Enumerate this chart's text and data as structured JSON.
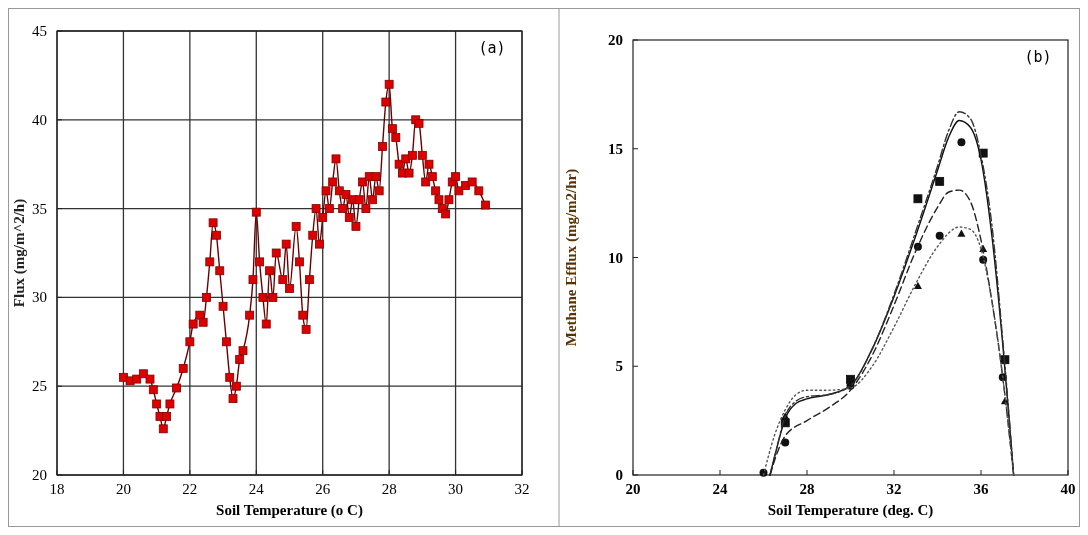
{
  "chart_data": [
    {
      "type": "line",
      "xlabel": "Soil Temperature (o C)",
      "ylabel": "Flux (mg/m^2/h)",
      "annotations": [
        "(a)"
      ],
      "xlim": [
        18,
        32
      ],
      "xticks": [
        18,
        20,
        22,
        24,
        26,
        28,
        30,
        32
      ],
      "ylim": [
        20,
        45
      ],
      "yticks": [
        20,
        25,
        30,
        35,
        40,
        45
      ],
      "grid": true,
      "marker": "square",
      "series": [
        {
          "color": "#dd0000",
          "x": [
            20.0,
            20.2,
            20.4,
            20.6,
            20.8,
            20.9,
            21.0,
            21.1,
            21.2,
            21.3,
            21.4,
            21.6,
            21.8,
            22.0,
            22.1,
            22.3,
            22.4,
            22.5,
            22.6,
            22.7,
            22.8,
            22.9,
            23.0,
            23.1,
            23.2,
            23.3,
            23.4,
            23.5,
            23.6,
            23.8,
            23.9,
            24.0,
            24.1,
            24.2,
            24.3,
            24.4,
            24.5,
            24.6,
            24.8,
            24.9,
            25.0,
            25.2,
            25.3,
            25.4,
            25.5,
            25.6,
            25.7,
            25.8,
            25.9,
            26.0,
            26.1,
            26.2,
            26.3,
            26.4,
            26.5,
            26.6,
            26.7,
            26.8,
            26.9,
            27.0,
            27.1,
            27.2,
            27.3,
            27.4,
            27.5,
            27.6,
            27.7,
            27.8,
            27.9,
            28.0,
            28.1,
            28.2,
            28.3,
            28.4,
            28.5,
            28.6,
            28.7,
            28.8,
            28.9,
            29.0,
            29.1,
            29.2,
            29.3,
            29.4,
            29.5,
            29.6,
            29.7,
            29.8,
            29.9,
            30.0,
            30.1,
            30.3,
            30.5,
            30.7,
            30.9
          ],
          "values": [
            25.5,
            25.3,
            25.4,
            25.7,
            25.4,
            24.8,
            24.0,
            23.3,
            22.6,
            23.3,
            24.0,
            24.9,
            26.0,
            27.5,
            28.5,
            29.0,
            28.6,
            30.0,
            32.0,
            34.2,
            33.5,
            31.5,
            29.5,
            27.5,
            25.5,
            24.3,
            25.0,
            26.5,
            27.0,
            29.0,
            31.0,
            34.8,
            32.0,
            30.0,
            28.5,
            31.5,
            30.0,
            32.5,
            31.0,
            33.0,
            30.5,
            34.0,
            32.0,
            29.0,
            28.2,
            31.0,
            33.5,
            35.0,
            33.0,
            34.5,
            36.0,
            35.0,
            36.5,
            37.8,
            36.0,
            35.0,
            35.8,
            34.5,
            35.5,
            34.0,
            35.5,
            36.5,
            35.0,
            36.8,
            35.5,
            36.8,
            36.0,
            38.5,
            41.0,
            42.0,
            39.5,
            39.0,
            37.5,
            37.0,
            37.8,
            37.0,
            38.0,
            40.0,
            39.8,
            38.0,
            36.5,
            37.5,
            36.8,
            36.0,
            35.5,
            35.0,
            34.7,
            35.5,
            36.5,
            36.8,
            36.0,
            36.3,
            36.5,
            36.0,
            35.2
          ]
        }
      ]
    },
    {
      "type": "scatter",
      "xlabel": "Soil Temperature (deg. C)",
      "ylabel": "Methane Efflux (mg/m2/hr)",
      "annotations": [
        "(b)"
      ],
      "xlim": [
        20,
        40
      ],
      "xticks": [
        20,
        24,
        28,
        32,
        36,
        40
      ],
      "ylim": [
        0,
        20
      ],
      "yticks": [
        0,
        5,
        10,
        15,
        20
      ],
      "grid": false,
      "series": [
        {
          "color": "#111111",
          "marker": "square",
          "x": [
            27,
            30,
            33.1,
            34.1,
            36.1,
            37.1
          ],
          "values": [
            2.4,
            4.4,
            12.7,
            13.5,
            14.8,
            5.3
          ]
        },
        {
          "color": "#111111",
          "marker": "circle",
          "x": [
            26,
            27,
            30,
            33.1,
            34.1,
            35.1,
            36.1,
            37
          ],
          "values": [
            0.1,
            1.5,
            4.1,
            10.5,
            11.0,
            15.3,
            9.9,
            4.5
          ]
        },
        {
          "color": "#111111",
          "marker": "triangle",
          "x": [
            27,
            33.1,
            35.1,
            36.1,
            37.1
          ],
          "values": [
            2.7,
            8.7,
            11.1,
            10.4,
            3.4
          ]
        },
        {
          "color": "#111111",
          "type": "line",
          "line_style": "solid",
          "x": [
            26.3,
            26.6,
            27,
            27.5,
            28,
            29,
            30,
            31,
            32,
            33,
            34,
            34.5,
            35,
            35.5,
            36,
            36.5,
            37,
            37.3,
            37.5
          ],
          "values": [
            0,
            1.2,
            2.6,
            3.3,
            3.5,
            3.7,
            4.1,
            5.8,
            8.2,
            11.0,
            14.0,
            15.5,
            16.3,
            16.0,
            14.5,
            11.0,
            6.0,
            2.5,
            0
          ]
        },
        {
          "color": "#333333",
          "type": "line",
          "line_style": "dashdot",
          "x": [
            26.3,
            26.6,
            27,
            27.5,
            28,
            29,
            30,
            31,
            32,
            33,
            34,
            34.5,
            35,
            35.5,
            36,
            36.5,
            37,
            37.3,
            37.5
          ],
          "values": [
            0,
            1.2,
            2.7,
            3.4,
            3.6,
            3.7,
            4.1,
            5.8,
            8.3,
            11.2,
            14.2,
            15.8,
            16.7,
            16.4,
            14.7,
            11.5,
            6.2,
            2.6,
            0
          ]
        },
        {
          "color": "#222222",
          "type": "line",
          "line_style": "dashed",
          "x": [
            26.3,
            26.7,
            27,
            28,
            29,
            30,
            31,
            32,
            33,
            34,
            34.5,
            35,
            35.5,
            36,
            36.5,
            37,
            37.5
          ],
          "values": [
            0,
            1.2,
            1.8,
            2.5,
            3.1,
            3.9,
            5.5,
            7.8,
            10.3,
            12.3,
            13.0,
            13.1,
            12.6,
            10.8,
            8.0,
            4.5,
            0
          ]
        },
        {
          "color": "#555555",
          "type": "line",
          "line_style": "dotted",
          "x": [
            26.0,
            26.5,
            27,
            27.5,
            28,
            29,
            30,
            31,
            32,
            33,
            34,
            35,
            35.5,
            36,
            36.5,
            37,
            37.5
          ],
          "values": [
            0,
            1.8,
            3.0,
            3.7,
            3.9,
            3.9,
            4.0,
            5.0,
            6.8,
            8.8,
            10.5,
            11.4,
            11.3,
            10.4,
            8.0,
            4.5,
            0
          ]
        }
      ]
    }
  ]
}
